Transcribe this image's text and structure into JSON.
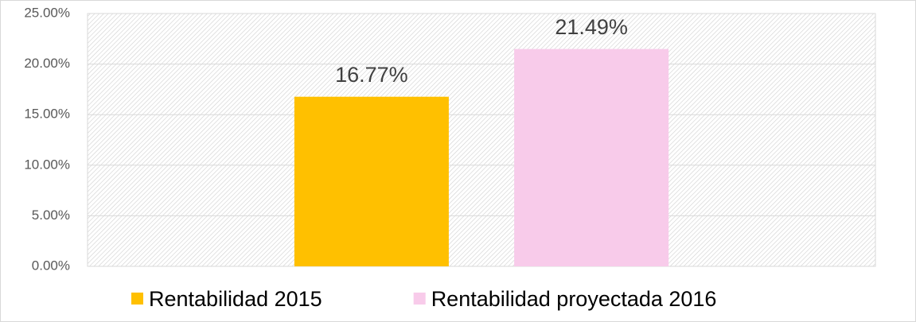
{
  "chart_data": {
    "type": "bar",
    "categories": [
      null
    ],
    "series": [
      {
        "name": "Rentabilidad 2015",
        "color": "#ffc000",
        "values": [
          16.77
        ],
        "value_labels": [
          "16.77%"
        ]
      },
      {
        "name": "Rentabilidad proyectada 2016",
        "color": "#f8cbea",
        "values": [
          21.49
        ],
        "value_labels": [
          "21.49%"
        ]
      }
    ],
    "ylim": [
      0,
      25
    ],
    "yticks": [
      {
        "value": 0,
        "label": "0.00%"
      },
      {
        "value": 5,
        "label": "5.00%"
      },
      {
        "value": 10,
        "label": "10.00%"
      },
      {
        "value": 15,
        "label": "15.00%"
      },
      {
        "value": 20,
        "label": "20.00%"
      },
      {
        "value": 25,
        "label": "25.00%"
      }
    ],
    "grid": true,
    "legend": "bottom"
  }
}
